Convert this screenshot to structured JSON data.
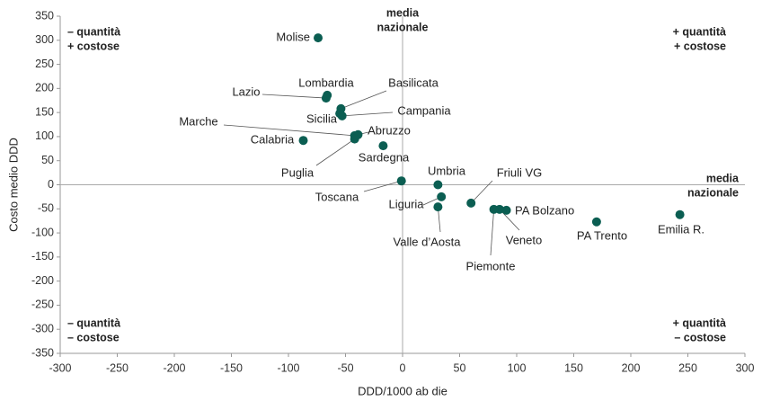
{
  "chart_data": {
    "type": "scatter",
    "x_label": "DDD/1000 ab die",
    "y_label": "Costo medio DDD",
    "color": "#0b5e52",
    "point_labels": [
      "Molise",
      "Lazio",
      "Lombardia",
      "Basilicata",
      "Sicilia",
      "Campania",
      "Marche",
      "Calabria",
      "Abruzzo",
      "Puglia",
      "Sardegna",
      "Toscana",
      "Umbria",
      "Liguria",
      "Valle d’Aosta",
      "Friuli VG",
      "PA Bolzano",
      "Veneto",
      "Piemonte",
      "PA Trento",
      "Emilia R."
    ],
    "x": [
      -74,
      -67,
      -66,
      -54,
      -55,
      -53,
      -42,
      -87,
      -39,
      -42,
      -17,
      -1,
      31,
      34,
      31,
      60,
      91,
      85,
      80,
      170,
      243
    ],
    "values": [
      305,
      180,
      186,
      158,
      148,
      143,
      102,
      92,
      104,
      95,
      81,
      8,
      0,
      -25,
      -46,
      -38,
      -53,
      -51,
      -51,
      -77,
      -62
    ],
    "xlim": [
      -300,
      300
    ],
    "ylim": [
      -350,
      350
    ],
    "xticks": [
      -300,
      -250,
      -200,
      -150,
      -100,
      -50,
      0,
      50,
      100,
      150,
      200,
      250,
      300
    ],
    "yticks": [
      -350,
      -300,
      -250,
      -200,
      -150,
      -100,
      -50,
      0,
      50,
      100,
      150,
      200,
      250,
      300,
      350
    ],
    "quadrant_labels": {
      "top_left": [
        "– quantità",
        "+ costose"
      ],
      "top_right": [
        "+ quantità",
        "+ costose"
      ],
      "bottom_left": [
        "– quantità",
        "– costose"
      ],
      "bottom_right": [
        "+ quantità",
        "– costose"
      ]
    },
    "reference_labels": [
      [
        "media",
        "nazionale"
      ],
      [
        "media",
        "nazionale"
      ]
    ]
  }
}
